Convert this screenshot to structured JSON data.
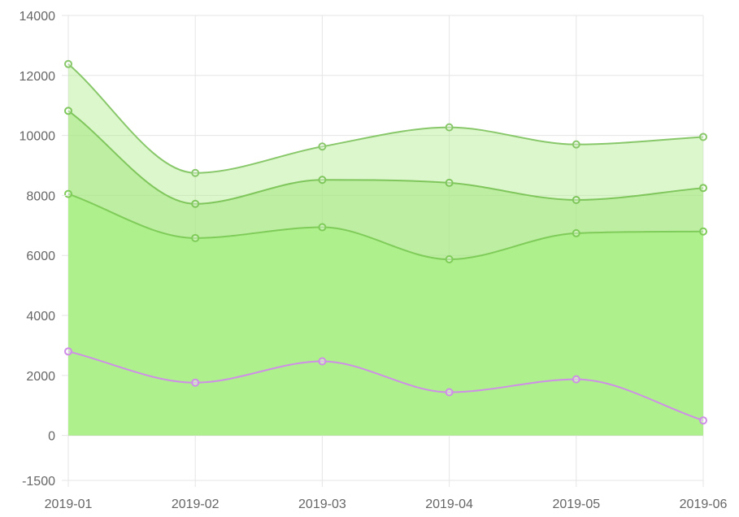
{
  "chart_data": {
    "type": "area",
    "categories": [
      "2019-01",
      "2019-02",
      "2019-03",
      "2019-04",
      "2019-05",
      "2019-06"
    ],
    "y_ticks": [
      -1500,
      0,
      2000,
      4000,
      6000,
      8000,
      10000,
      12000,
      14000
    ],
    "ylim": [
      -1500,
      14000
    ],
    "grid": true,
    "series": [
      {
        "values": [
          12380,
          8750,
          9630,
          10270,
          9700,
          9950
        ],
        "fill": "rgba(175, 235, 135, 0.42)",
        "stroke": "#88c86a",
        "point": "#88c86a"
      },
      {
        "values": [
          10820,
          7720,
          8520,
          8420,
          7850,
          8250
        ],
        "fill": "rgba(160, 230, 120, 0.50)",
        "stroke": "#7fc65c",
        "point": "#7fc65c"
      },
      {
        "values": [
          8050,
          6580,
          6940,
          5870,
          6740,
          6800
        ],
        "fill": "#aef08b",
        "stroke": "#7fcc5a",
        "point": "#7fcc5a"
      },
      {
        "values": [
          2800,
          1760,
          2470,
          1440,
          1870,
          500
        ],
        "fill": "none",
        "stroke": "#cf8ee8",
        "point": "#cf8ee8"
      }
    ]
  }
}
